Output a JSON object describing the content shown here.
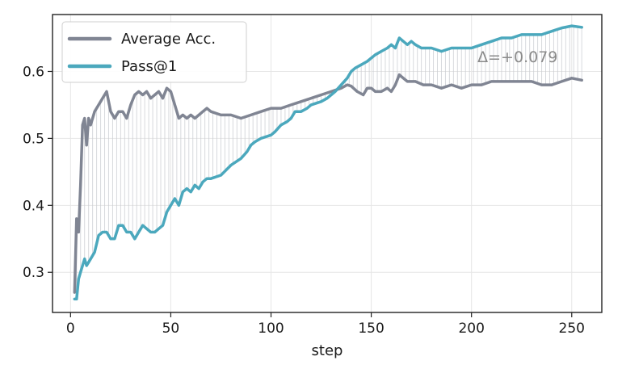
{
  "chart_data": {
    "type": "line",
    "title": "",
    "xlabel": "step",
    "ylabel": "",
    "xlim": [
      -9,
      265
    ],
    "ylim": [
      0.24,
      0.685
    ],
    "xticks": [
      0,
      50,
      100,
      150,
      200,
      250
    ],
    "yticks": [
      0.3,
      0.4,
      0.5,
      0.6
    ],
    "xtick_labels": [
      "0",
      "50",
      "100",
      "150",
      "200",
      "250"
    ],
    "ytick_labels": [
      "0.3",
      "0.4",
      "0.5",
      "0.6"
    ],
    "grid": true,
    "legend_position": "upper-left",
    "annotation": "Δ=+0.079",
    "series": [
      {
        "name": "Average Acc.",
        "color": "#808593",
        "points": [
          [
            2,
            0.27
          ],
          [
            3,
            0.38
          ],
          [
            4,
            0.36
          ],
          [
            5,
            0.43
          ],
          [
            6,
            0.52
          ],
          [
            7,
            0.53
          ],
          [
            8,
            0.49
          ],
          [
            9,
            0.53
          ],
          [
            10,
            0.52
          ],
          [
            12,
            0.54
          ],
          [
            14,
            0.55
          ],
          [
            16,
            0.56
          ],
          [
            18,
            0.57
          ],
          [
            20,
            0.54
          ],
          [
            22,
            0.53
          ],
          [
            24,
            0.54
          ],
          [
            26,
            0.54
          ],
          [
            28,
            0.53
          ],
          [
            30,
            0.55
          ],
          [
            32,
            0.565
          ],
          [
            34,
            0.57
          ],
          [
            36,
            0.565
          ],
          [
            38,
            0.57
          ],
          [
            40,
            0.56
          ],
          [
            42,
            0.565
          ],
          [
            44,
            0.57
          ],
          [
            46,
            0.56
          ],
          [
            48,
            0.575
          ],
          [
            50,
            0.57
          ],
          [
            52,
            0.55
          ],
          [
            54,
            0.53
          ],
          [
            56,
            0.535
          ],
          [
            58,
            0.53
          ],
          [
            60,
            0.535
          ],
          [
            62,
            0.53
          ],
          [
            64,
            0.535
          ],
          [
            66,
            0.54
          ],
          [
            68,
            0.545
          ],
          [
            70,
            0.54
          ],
          [
            75,
            0.535
          ],
          [
            80,
            0.535
          ],
          [
            85,
            0.53
          ],
          [
            90,
            0.535
          ],
          [
            95,
            0.54
          ],
          [
            100,
            0.545
          ],
          [
            105,
            0.545
          ],
          [
            110,
            0.55
          ],
          [
            115,
            0.555
          ],
          [
            120,
            0.56
          ],
          [
            125,
            0.565
          ],
          [
            130,
            0.57
          ],
          [
            135,
            0.575
          ],
          [
            138,
            0.58
          ],
          [
            140,
            0.578
          ],
          [
            143,
            0.57
          ],
          [
            146,
            0.565
          ],
          [
            148,
            0.575
          ],
          [
            150,
            0.575
          ],
          [
            152,
            0.57
          ],
          [
            155,
            0.57
          ],
          [
            158,
            0.575
          ],
          [
            160,
            0.57
          ],
          [
            162,
            0.58
          ],
          [
            164,
            0.595
          ],
          [
            166,
            0.59
          ],
          [
            168,
            0.585
          ],
          [
            172,
            0.585
          ],
          [
            176,
            0.58
          ],
          [
            180,
            0.58
          ],
          [
            185,
            0.575
          ],
          [
            190,
            0.58
          ],
          [
            195,
            0.575
          ],
          [
            200,
            0.58
          ],
          [
            205,
            0.58
          ],
          [
            210,
            0.585
          ],
          [
            215,
            0.585
          ],
          [
            220,
            0.585
          ],
          [
            225,
            0.585
          ],
          [
            230,
            0.585
          ],
          [
            235,
            0.58
          ],
          [
            240,
            0.58
          ],
          [
            245,
            0.585
          ],
          [
            250,
            0.59
          ],
          [
            255,
            0.587
          ]
        ]
      },
      {
        "name": "Pass@1",
        "color": "#4ba8bd",
        "points": [
          [
            2,
            0.26
          ],
          [
            3,
            0.26
          ],
          [
            4,
            0.29
          ],
          [
            5,
            0.3
          ],
          [
            6,
            0.31
          ],
          [
            7,
            0.32
          ],
          [
            8,
            0.31
          ],
          [
            10,
            0.32
          ],
          [
            12,
            0.33
          ],
          [
            14,
            0.355
          ],
          [
            16,
            0.36
          ],
          [
            18,
            0.36
          ],
          [
            20,
            0.35
          ],
          [
            22,
            0.35
          ],
          [
            24,
            0.37
          ],
          [
            26,
            0.37
          ],
          [
            28,
            0.36
          ],
          [
            30,
            0.36
          ],
          [
            32,
            0.35
          ],
          [
            34,
            0.36
          ],
          [
            36,
            0.37
          ],
          [
            38,
            0.365
          ],
          [
            40,
            0.36
          ],
          [
            42,
            0.36
          ],
          [
            44,
            0.365
          ],
          [
            46,
            0.37
          ],
          [
            48,
            0.39
          ],
          [
            50,
            0.4
          ],
          [
            52,
            0.41
          ],
          [
            54,
            0.4
          ],
          [
            56,
            0.42
          ],
          [
            58,
            0.425
          ],
          [
            60,
            0.42
          ],
          [
            62,
            0.43
          ],
          [
            64,
            0.425
          ],
          [
            66,
            0.435
          ],
          [
            68,
            0.44
          ],
          [
            70,
            0.44
          ],
          [
            75,
            0.445
          ],
          [
            80,
            0.46
          ],
          [
            85,
            0.47
          ],
          [
            88,
            0.48
          ],
          [
            90,
            0.49
          ],
          [
            92,
            0.495
          ],
          [
            95,
            0.5
          ],
          [
            100,
            0.505
          ],
          [
            102,
            0.51
          ],
          [
            105,
            0.52
          ],
          [
            108,
            0.525
          ],
          [
            110,
            0.53
          ],
          [
            112,
            0.54
          ],
          [
            115,
            0.54
          ],
          [
            118,
            0.545
          ],
          [
            120,
            0.55
          ],
          [
            125,
            0.555
          ],
          [
            128,
            0.56
          ],
          [
            130,
            0.565
          ],
          [
            132,
            0.57
          ],
          [
            135,
            0.58
          ],
          [
            138,
            0.59
          ],
          [
            140,
            0.6
          ],
          [
            142,
            0.605
          ],
          [
            145,
            0.61
          ],
          [
            148,
            0.615
          ],
          [
            150,
            0.62
          ],
          [
            152,
            0.625
          ],
          [
            155,
            0.63
          ],
          [
            158,
            0.635
          ],
          [
            160,
            0.64
          ],
          [
            162,
            0.635
          ],
          [
            164,
            0.65
          ],
          [
            166,
            0.645
          ],
          [
            168,
            0.64
          ],
          [
            170,
            0.645
          ],
          [
            172,
            0.64
          ],
          [
            175,
            0.635
          ],
          [
            180,
            0.635
          ],
          [
            185,
            0.63
          ],
          [
            190,
            0.635
          ],
          [
            195,
            0.635
          ],
          [
            200,
            0.635
          ],
          [
            205,
            0.64
          ],
          [
            210,
            0.645
          ],
          [
            215,
            0.65
          ],
          [
            220,
            0.65
          ],
          [
            225,
            0.655
          ],
          [
            230,
            0.655
          ],
          [
            235,
            0.655
          ],
          [
            240,
            0.66
          ],
          [
            245,
            0.665
          ],
          [
            250,
            0.668
          ],
          [
            255,
            0.666
          ]
        ]
      }
    ]
  }
}
